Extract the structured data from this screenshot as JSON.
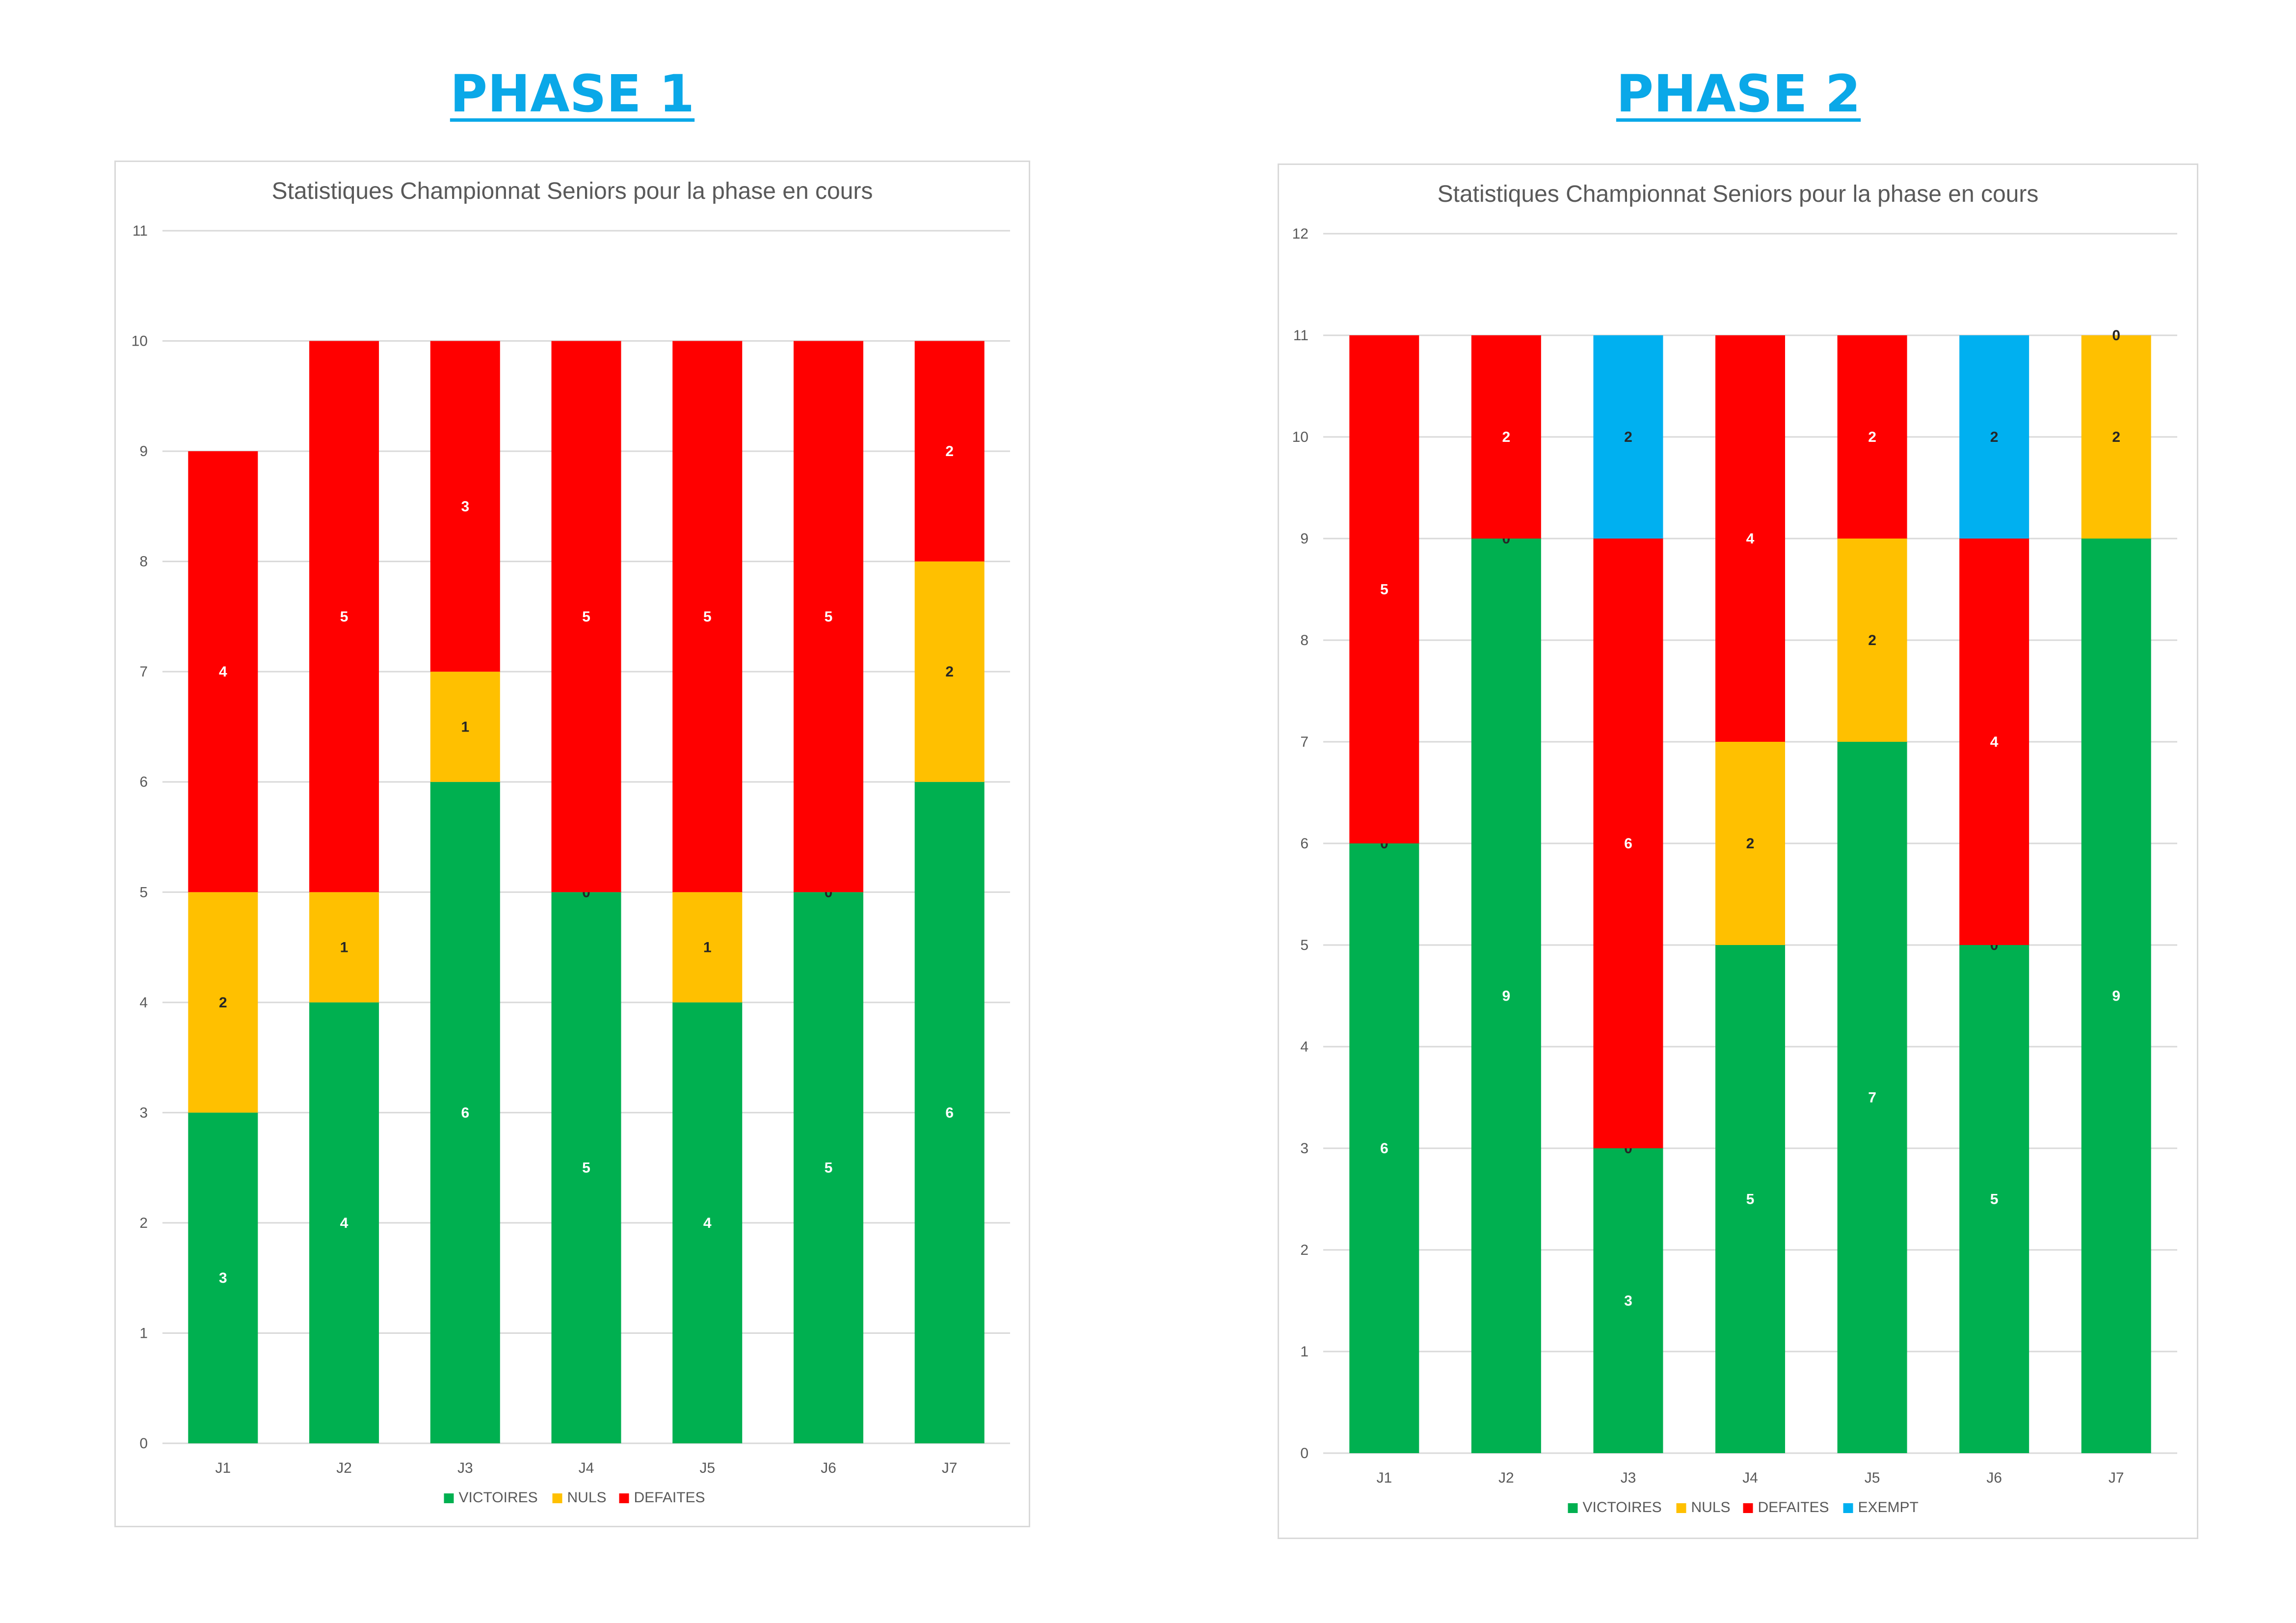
{
  "phases": [
    {
      "title": "PHASE 1"
    },
    {
      "title": "PHASE 2"
    }
  ],
  "chart_data": [
    {
      "type": "bar",
      "stacked": true,
      "title": "Statistiques Championnat Seniors pour la phase en cours",
      "categories": [
        "J1",
        "J2",
        "J3",
        "J4",
        "J5",
        "J6",
        "J7"
      ],
      "ylim": [
        0,
        11
      ],
      "yticks": [
        0,
        1,
        2,
        3,
        4,
        5,
        6,
        7,
        8,
        9,
        10,
        11
      ],
      "grid": true,
      "legend_position": "bottom",
      "series": [
        {
          "name": "VICTOIRES",
          "color": "#00b050",
          "label_color": "#ffffff",
          "values": [
            3,
            4,
            6,
            5,
            4,
            5,
            6
          ]
        },
        {
          "name": "NULS",
          "color": "#ffc000",
          "label_color": "#262626",
          "values": [
            2,
            1,
            1,
            0,
            1,
            0,
            2
          ]
        },
        {
          "name": "DEFAITES",
          "color": "#ff0000",
          "label_color": "#ffffff",
          "values": [
            4,
            5,
            3,
            5,
            5,
            5,
            2
          ]
        }
      ]
    },
    {
      "type": "bar",
      "stacked": true,
      "title": "Statistiques Championnat Seniors pour la phase en cours",
      "categories": [
        "J1",
        "J2",
        "J3",
        "J4",
        "J5",
        "J6",
        "J7"
      ],
      "ylim": [
        0,
        12
      ],
      "yticks": [
        0,
        1,
        2,
        3,
        4,
        5,
        6,
        7,
        8,
        9,
        10,
        11,
        12
      ],
      "grid": true,
      "legend_position": "bottom",
      "series": [
        {
          "name": "VICTOIRES",
          "color": "#00b050",
          "label_color": "#ffffff",
          "values": [
            6,
            9,
            3,
            5,
            7,
            5,
            9
          ]
        },
        {
          "name": "NULS",
          "color": "#ffc000",
          "label_color": "#262626",
          "values": [
            0,
            0,
            0,
            2,
            2,
            0,
            2
          ]
        },
        {
          "name": "DEFAITES",
          "color": "#ff0000",
          "label_color": "#ffffff",
          "values": [
            5,
            2,
            6,
            4,
            2,
            4,
            0
          ]
        },
        {
          "name": "EXEMPT",
          "color": "#00b0f0",
          "label_color": "#262626",
          "values": [
            0,
            0,
            2,
            0,
            0,
            2,
            0
          ]
        }
      ]
    }
  ]
}
